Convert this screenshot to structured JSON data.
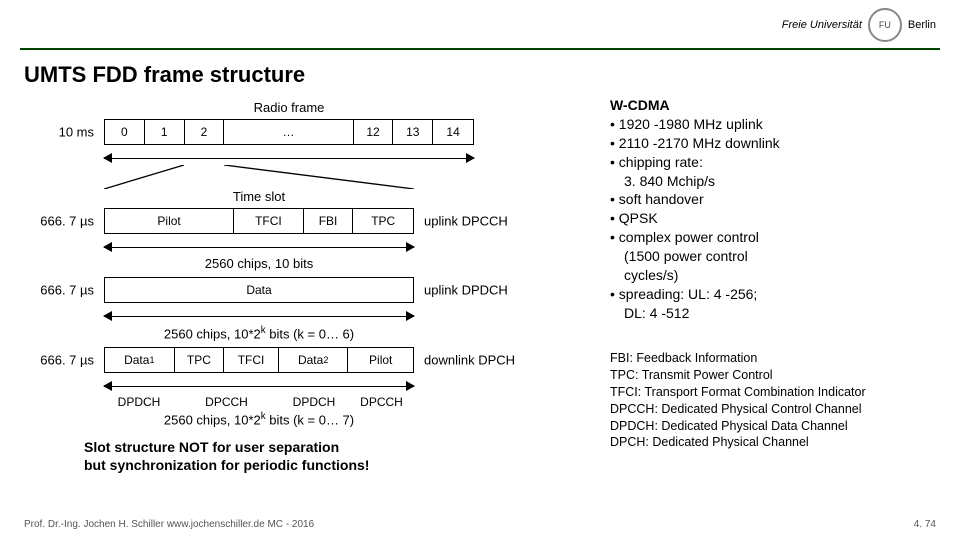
{
  "logo": {
    "text": "Freie Universität",
    "city": "Berlin"
  },
  "title": "UMTS FDD frame structure",
  "radio_frame": {
    "caption": "Radio frame",
    "left_label": "10 ms",
    "cells": [
      "0",
      "1",
      "2",
      "…",
      "12",
      "13",
      "14"
    ],
    "widths": [
      40,
      40,
      40,
      130,
      40,
      40,
      40
    ],
    "border_color": "#000000",
    "bg": "#ffffff"
  },
  "timeslot_caption": "Time slot",
  "rows": [
    {
      "left_label": "666. 7 µs",
      "right_label": "uplink DPCCH",
      "cells": [
        "Pilot",
        "TFCI",
        "FBI",
        "TPC"
      ],
      "widths": [
        130,
        70,
        50,
        60
      ],
      "below": "2560 chips, 10 bits"
    },
    {
      "left_label": "666. 7 µs",
      "right_label": "uplink DPDCH",
      "cells": [
        "Data"
      ],
      "widths": [
        310
      ],
      "below_html": "2560 chips, 10*2<sup>k</sup> bits (k = 0… 6)"
    },
    {
      "left_label": "666. 7 µs",
      "right_label": "downlink DPCH",
      "cells": [
        "Data",
        "TPC",
        "TFCI",
        "Data",
        "Pilot"
      ],
      "cell_subscripts": [
        "1",
        "",
        "",
        "2",
        ""
      ],
      "widths": [
        70,
        50,
        55,
        70,
        65
      ],
      "group_labels": [
        "DPDCH",
        "DPCCH",
        "DPDCH",
        "DPCCH"
      ],
      "group_widths": [
        70,
        105,
        70,
        65
      ],
      "below_html": "2560 chips, 10*2<sup>k</sup> bits (k = 0… 7)"
    }
  ],
  "slot_note_l1": "Slot structure NOT for user separation",
  "slot_note_l2": "but synchronization for periodic functions!",
  "wcdma": {
    "heading": "W-CDMA",
    "bullets": [
      "1920 -1980 MHz uplink",
      "2110 -2170 MHz downlink",
      "chipping rate:\n3. 840 Mchip/s",
      "soft handover",
      "QPSK",
      "complex power control\n(1500 power control\ncycles/s)",
      "spreading: UL: 4 -256;\nDL: 4 -512"
    ]
  },
  "acronyms": [
    "FBI: Feedback Information",
    "TPC: Transmit Power Control",
    "TFCI: Transport Format Combination Indicator",
    "DPCCH: Dedicated Physical Control Channel",
    "DPDCH: Dedicated Physical Data Channel",
    "DPCH: Dedicated Physical Channel"
  ],
  "footer": {
    "left": "Prof. Dr.-Ing. Jochen H. Schiller    www.jochenschiller.de    MC - 2016",
    "right": "4. 74"
  },
  "colors": {
    "rule": "#004400",
    "text": "#000000"
  }
}
